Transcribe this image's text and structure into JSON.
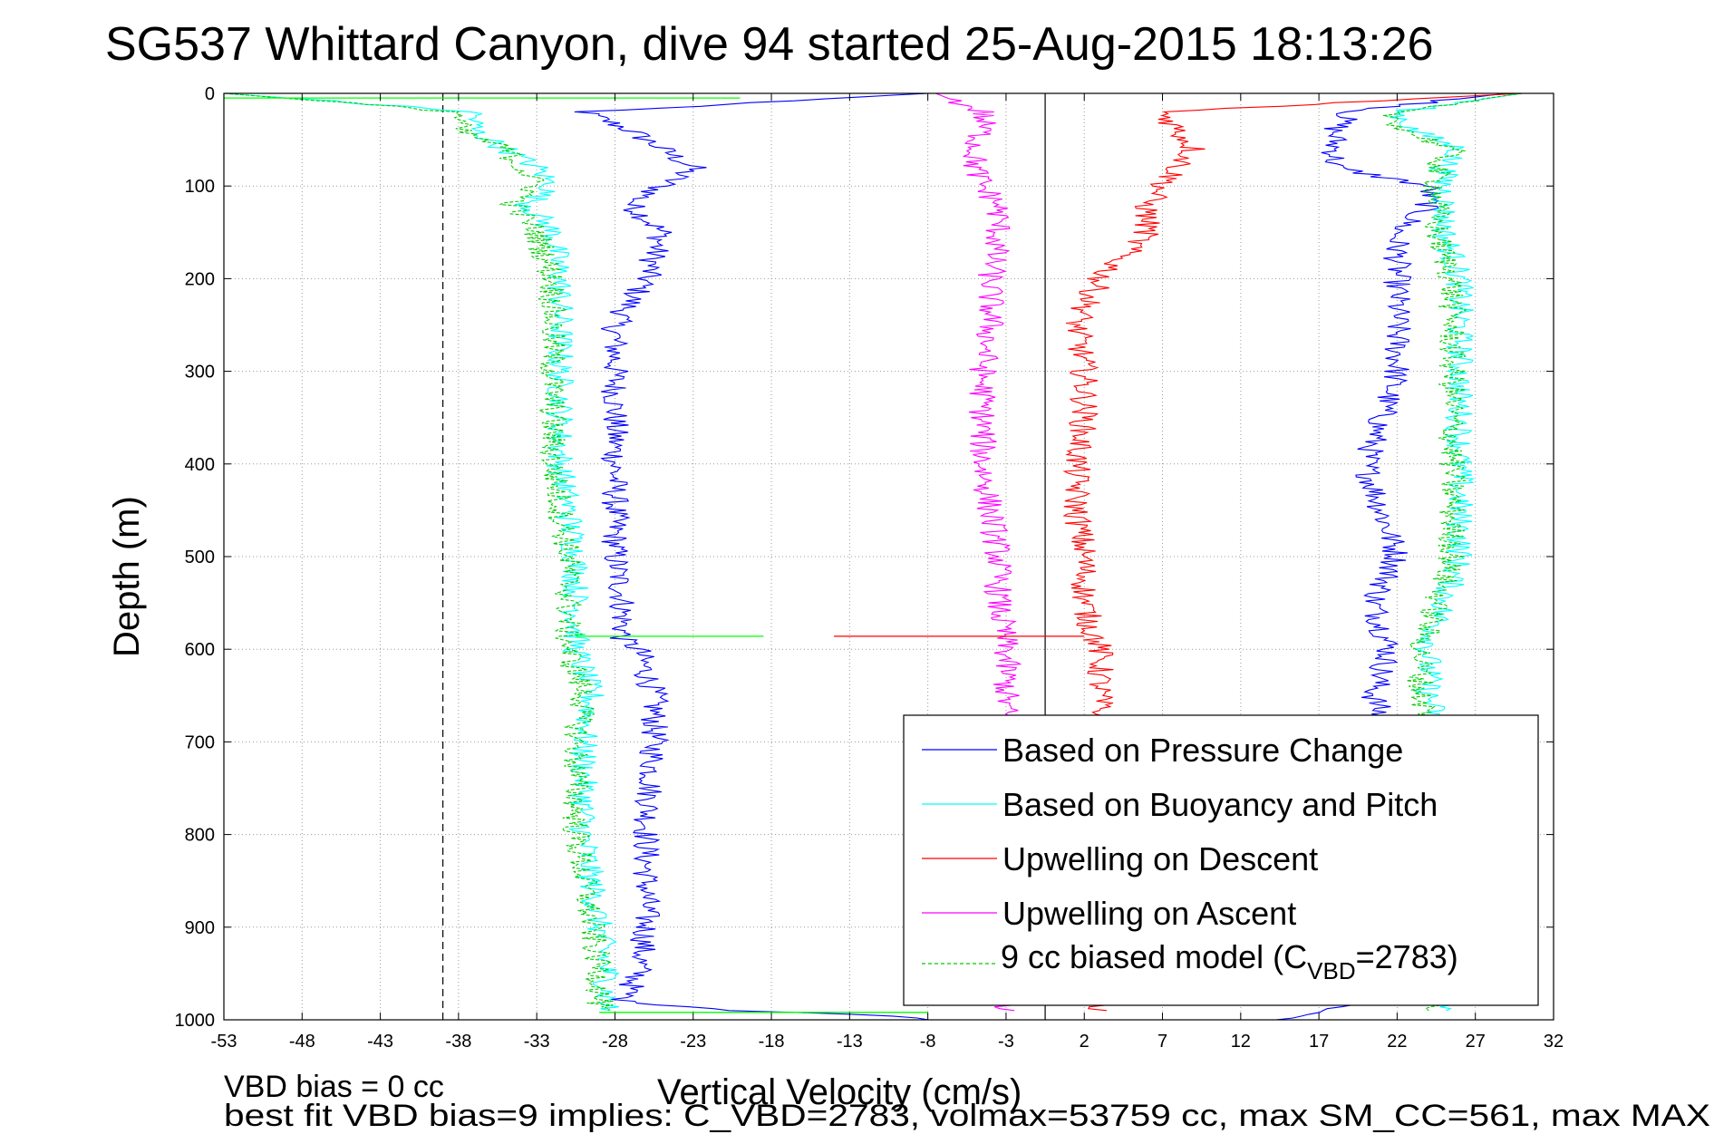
{
  "chart_data": {
    "type": "line",
    "title": "SG537 Whittard Canyon, dive 94 started 25-Aug-2015 18:13:26",
    "xlabel": "Vertical Velocity (cm/s)",
    "ylabel": "Depth (m)",
    "xlim": [
      -53,
      32
    ],
    "ylim": [
      1000,
      0
    ],
    "y_reversed": true,
    "xticks": [
      "-53",
      "-48",
      "-43",
      "-38",
      "-33",
      "-28",
      "-23",
      "-18",
      "-13",
      "-8",
      "-3",
      "2",
      "7",
      "12",
      "17",
      "22",
      "27",
      "32"
    ],
    "yticks": [
      "0",
      "100",
      "200",
      "300",
      "400",
      "500",
      "600",
      "700",
      "800",
      "900",
      "1000"
    ],
    "grid": true,
    "legend_position": "bottom-right",
    "reference_lines": [
      {
        "x": -39,
        "style": "dashed",
        "color": "#000000"
      },
      {
        "x": -0.5,
        "style": "solid",
        "color": "#000000"
      }
    ],
    "series": [
      {
        "name": "Based on Pressure Change",
        "color": "#0000ff",
        "segments": [
          {
            "depth": [
              0,
              20,
              40,
              60,
              80,
              100,
              120,
              150,
              200,
              250,
              300,
              350,
              400,
              450,
              500,
              550,
              580,
              590,
              600,
              650,
              700,
              800,
              900,
              950,
              980,
              990,
              995,
              1000
            ],
            "velocity": [
              -8,
              -30,
              -27,
              -25,
              -23,
              -25,
              -27,
              -25,
              -26,
              -28,
              -28,
              -28,
              -28,
              -28,
              -28,
              -27.5,
              -27.5,
              -27.5,
              -26.5,
              -25.5,
              -25.5,
              -26,
              -26,
              -26.5,
              -27.5,
              -20,
              -11,
              -8
            ]
          },
          {
            "depth": [
              0,
              20,
              40,
              80,
              100,
              120,
              150,
              200,
              250,
              300,
              350,
              400,
              450,
              500,
              550,
              600,
              650,
              700,
              800,
              900,
              950,
              980,
              990,
              1000
            ],
            "velocity": [
              29,
              19,
              18,
              18,
              24,
              24,
              22,
              22,
              22,
              22,
              21,
              20,
              21,
              22,
              20.5,
              21.5,
              20.5,
              21.5,
              21,
              21,
              20.5,
              20.5,
              17,
              15
            ]
          }
        ]
      },
      {
        "name": "Based on Buoyancy and Pitch",
        "color": "#00ffff",
        "segments": [
          {
            "depth": [
              0,
              20,
              40,
              60,
              80,
              100,
              120,
              150,
              200,
              300,
              400,
              500,
              580,
              600,
              650,
              700,
              800,
              900,
              950,
              990
            ],
            "velocity": [
              -53,
              -37,
              -37,
              -35,
              -33,
              -32,
              -33.5,
              -32,
              -31.5,
              -31.5,
              -31.5,
              -30.5,
              -30.5,
              -30.5,
              -29.5,
              -30,
              -30,
              -29,
              -28.5,
              -28.5
            ]
          },
          {
            "depth": [
              0,
              20,
              40,
              60,
              80,
              100,
              120,
              150,
              200,
              300,
              400,
              500,
              600,
              650,
              700,
              800,
              900,
              990
            ],
            "velocity": [
              30,
              22,
              23,
              26,
              25,
              25,
              25,
              25,
              26,
              26,
              26,
              26,
              24,
              24,
              25,
              25,
              25,
              25
            ]
          }
        ]
      },
      {
        "name": "Upwelling on Descent",
        "color": "#ff0000",
        "segments": [
          {
            "depth": [
              0,
              20,
              40,
              60,
              80,
              100,
              120,
              150,
              200,
              250,
              300,
              350,
              400,
              450,
              500,
              550,
              580,
              600,
              650,
              700,
              800,
              900,
              990
            ],
            "velocity": [
              30,
              7,
              8,
              9,
              8,
              7,
              6,
              6,
              3,
              1.5,
              2,
              2,
              1.5,
              1.5,
              2,
              2,
              2.5,
              3,
              3,
              3,
              3,
              3,
              3
            ]
          }
        ]
      },
      {
        "name": "Upwelling on Ascent",
        "color": "#ff00ff",
        "segments": [
          {
            "depth": [
              0,
              20,
              40,
              60,
              80,
              100,
              120,
              150,
              200,
              250,
              300,
              350,
              400,
              450,
              500,
              550,
              600,
              650,
              700,
              800,
              900,
              990
            ],
            "velocity": [
              -7.5,
              -4.5,
              -4.5,
              -5,
              -5,
              -4.5,
              -3.5,
              -3.5,
              -4,
              -4,
              -4.5,
              -4.5,
              -4.5,
              -4,
              -3.5,
              -3.5,
              -3,
              -3,
              -3,
              -3,
              -3,
              -3
            ]
          }
        ]
      },
      {
        "name": "9 cc biased model (C_VBD=2783)",
        "color": "#00cc00",
        "dashed": true,
        "segments": [
          {
            "depth": [
              0,
              20,
              40,
              60,
              80,
              100,
              120,
              150,
              200,
              300,
              400,
              500,
              580,
              600,
              650,
              700,
              800,
              900,
              950,
              990
            ],
            "velocity": [
              -53,
              -38,
              -38,
              -35,
              -34,
              -33,
              -34.5,
              -33,
              -32,
              -32,
              -32,
              -31,
              -31,
              -31,
              -30,
              -30.5,
              -30.5,
              -29.5,
              -29,
              -29
            ]
          },
          {
            "depth": [
              0,
              20,
              40,
              60,
              80,
              100,
              120,
              150,
              200,
              300,
              400,
              500,
              600,
              650,
              700,
              800,
              900,
              990
            ],
            "velocity": [
              30,
              21.5,
              22.5,
              25.5,
              24.5,
              24.5,
              24.5,
              24.5,
              25.5,
              25.5,
              25.5,
              25.5,
              23.5,
              23.5,
              24.5,
              24.5,
              24.5,
              24.5
            ]
          }
        ]
      }
    ],
    "spikes": [
      {
        "depth": 586,
        "x_from": -30.5,
        "x_to": -18.5,
        "color": "#00ff00"
      },
      {
        "depth": 586,
        "x_from": -14,
        "x_to": 2,
        "color": "#ff0000"
      },
      {
        "depth": 992,
        "x_from": -29,
        "x_to": -8,
        "color": "#00ff00"
      },
      {
        "depth": 5,
        "x_from": -53,
        "x_to": -20,
        "color": "#00ff00"
      }
    ]
  },
  "legend": {
    "items": [
      {
        "label": "Based on Pressure Change",
        "color": "#0000ff",
        "dashed": false
      },
      {
        "label": "Based on Buoyancy and Pitch",
        "color": "#00ffff",
        "dashed": false
      },
      {
        "label": "Upwelling on Descent",
        "color": "#ff0000",
        "dashed": false
      },
      {
        "label": "Upwelling on Ascent",
        "color": "#ff00ff",
        "dashed": false
      },
      {
        "label_prefix": "9 cc biased model (C",
        "label_sub": "VBD",
        "label_suffix": "=2783)",
        "color": "#00cc00",
        "dashed": true
      }
    ]
  },
  "notes": {
    "line1": "VBD bias = 0 cc",
    "line2": "best fit VBD bias=9 implies: C_VBD=2783, volmax=53759 cc, max SM_CC=561, max MAX"
  }
}
